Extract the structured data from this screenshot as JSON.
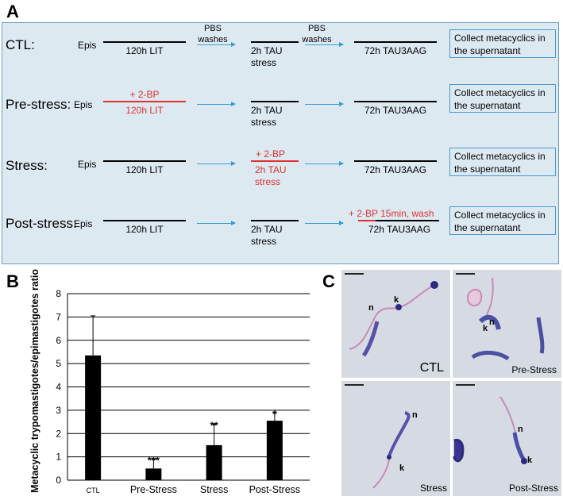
{
  "panel_labels": {
    "a": "A",
    "b": "B",
    "c": "C"
  },
  "schematic": {
    "epis_label": "Epis",
    "wash_label": "PBS\nwashes",
    "collect_label": "Collect metacyclics in\nthe supernatant",
    "rows": [
      {
        "label": "CTL:",
        "step1": {
          "text": "120h LIT",
          "red_top": ""
        },
        "step2": {
          "text": "2h TAU\nstress",
          "red_top": ""
        },
        "step3": {
          "text": "72h TAU3AAG",
          "red_top": ""
        }
      },
      {
        "label": "Pre-stress:",
        "step1": {
          "text": "120h LIT",
          "red_top": "+ 2-BP"
        },
        "step2": {
          "text": "2h TAU\nstress",
          "red_top": ""
        },
        "step3": {
          "text": "72h TAU3AAG",
          "red_top": ""
        }
      },
      {
        "label": "Stress:",
        "step1": {
          "text": "120h LIT",
          "red_top": ""
        },
        "step2": {
          "text": "2h TAU\nstress",
          "red_top": "+ 2-BP"
        },
        "step3": {
          "text": "72h TAU3AAG",
          "red_top": ""
        }
      },
      {
        "label": "Post-stress:",
        "step1": {
          "text": "120h LIT",
          "red_top": ""
        },
        "step2": {
          "text": "2h TAU\nstress",
          "red_top": ""
        },
        "step3": {
          "text": "72h TAU3AAG",
          "red_top": "+ 2-BP  15min, wash"
        }
      }
    ],
    "colors": {
      "panel_bg": "#dde9f1",
      "panel_border": "#6a9cc2",
      "arrow": "#3a9ad9",
      "treatment": "#e03030"
    }
  },
  "chart_data": {
    "type": "bar",
    "title": "",
    "xlabel": "",
    "ylabel": "Metacyclic trypomastigotes/epimastigotes ratio",
    "categories": [
      "CTL",
      "Pre-Stress",
      "Stress",
      "Post-Stress"
    ],
    "values": [
      5.35,
      0.5,
      1.5,
      2.55
    ],
    "errors": [
      1.7,
      0.4,
      0.9,
      0.35
    ],
    "significance": [
      "",
      "***",
      "**",
      "*"
    ],
    "ylim": [
      0,
      8
    ],
    "yticks": [
      0,
      1,
      2,
      3,
      4,
      5,
      6,
      7,
      8
    ],
    "grid": true,
    "bar_color": "#000000"
  },
  "micrographs": [
    {
      "caption": "CTL",
      "labels": [
        "n",
        "k"
      ]
    },
    {
      "caption": "Pre-Stress",
      "labels": [
        "n",
        "k"
      ]
    },
    {
      "caption": "Stress",
      "labels": [
        "n",
        "k"
      ]
    },
    {
      "caption": "Post-Stress",
      "labels": [
        "n",
        "k"
      ]
    }
  ]
}
